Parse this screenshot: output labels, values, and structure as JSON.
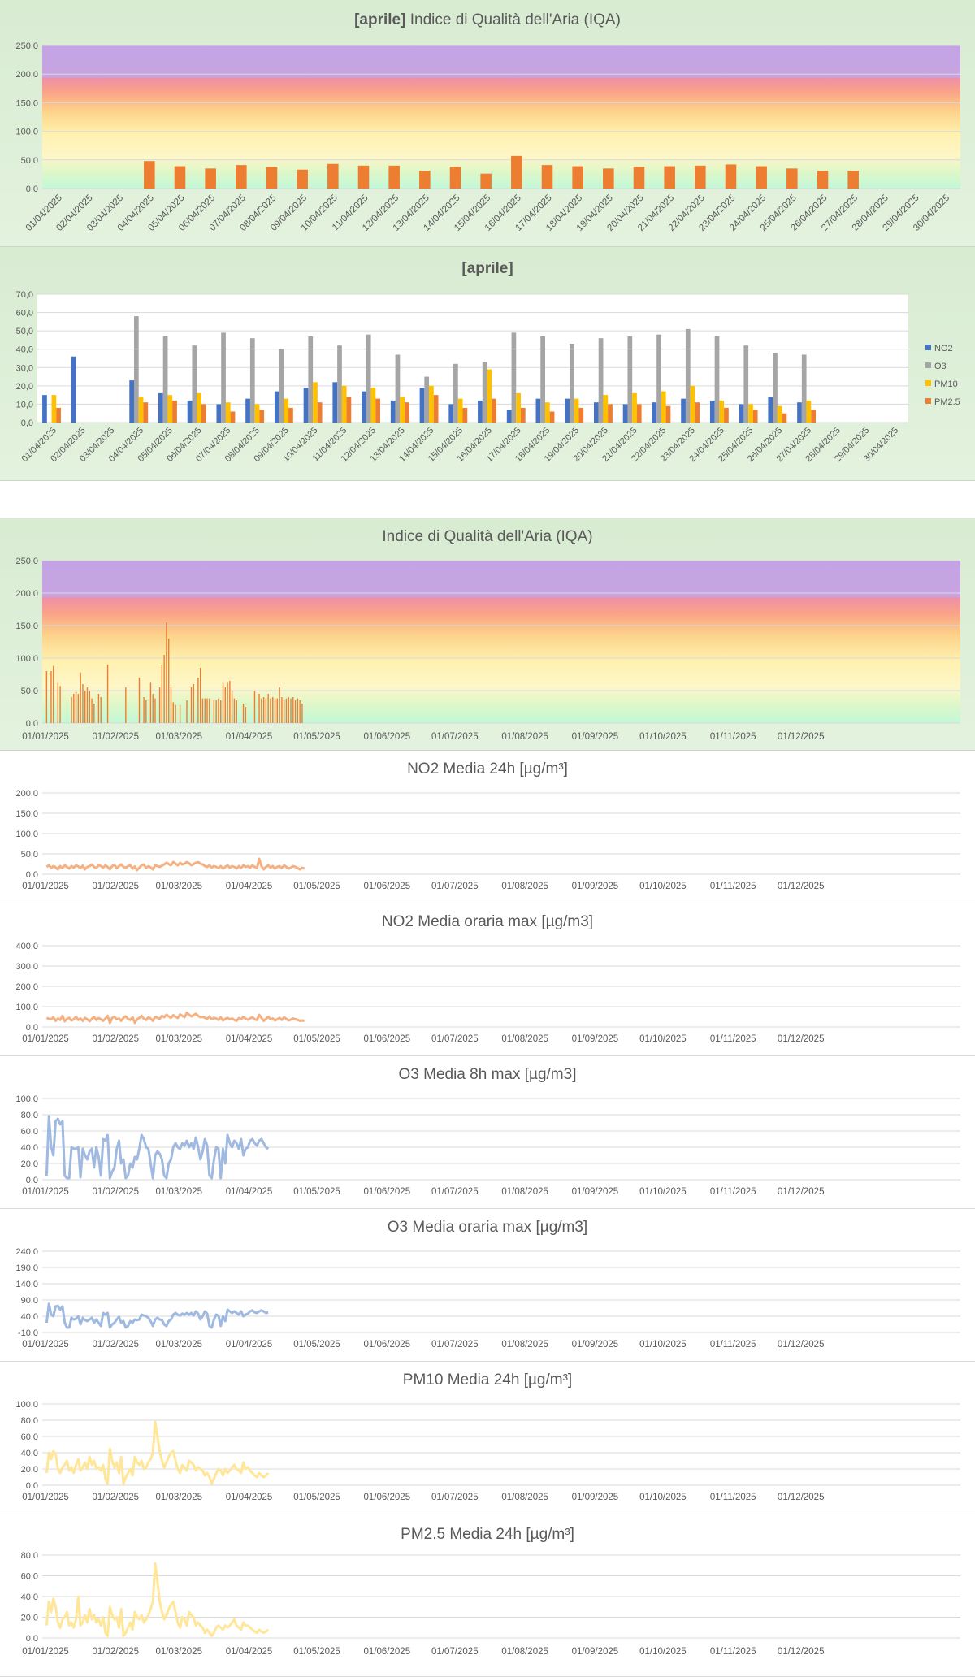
{
  "chart_data": [
    {
      "id": "c1",
      "type": "bar",
      "title_bold": "[aprile]",
      "title": "Indice di Qualità dell'Aria (IQA)",
      "ylim": [
        0,
        250
      ],
      "yticks": [
        "0,0",
        "50,0",
        "100,0",
        "150,0",
        "200,0",
        "250,0"
      ],
      "background_bands": "IQA colour scale: green, yellow, orange, red, purple",
      "categories": [
        "01/04/2025",
        "02/04/2025",
        "03/04/2025",
        "04/04/2025",
        "05/04/2025",
        "06/04/2025",
        "07/04/2025",
        "08/04/2025",
        "09/04/2025",
        "10/04/2025",
        "11/04/2025",
        "12/04/2025",
        "13/04/2025",
        "14/04/2025",
        "15/04/2025",
        "16/04/2025",
        "17/04/2025",
        "18/04/2025",
        "19/04/2025",
        "20/04/2025",
        "21/04/2025",
        "22/04/2025",
        "23/04/2025",
        "24/04/2025",
        "25/04/2025",
        "26/04/2025",
        "27/04/2025",
        "28/04/2025",
        "29/04/2025",
        "30/04/2025"
      ],
      "values": [
        null,
        null,
        null,
        48,
        39,
        35,
        41,
        38,
        33,
        43,
        40,
        40,
        31,
        38,
        26,
        57,
        41,
        39,
        35,
        38,
        39,
        40,
        42,
        39,
        35,
        31,
        31,
        null,
        null,
        null
      ],
      "color": "#ed7d31"
    },
    {
      "id": "c2",
      "type": "bar",
      "title_bold": "[aprile]",
      "title": "",
      "ylim": [
        0,
        70
      ],
      "yticks": [
        "0,0",
        "10,0",
        "20,0",
        "30,0",
        "40,0",
        "50,0",
        "60,0",
        "70,0"
      ],
      "categories": [
        "01/04/2025",
        "02/04/2025",
        "03/04/2025",
        "04/04/2025",
        "05/04/2025",
        "06/04/2025",
        "07/04/2025",
        "08/04/2025",
        "09/04/2025",
        "10/04/2025",
        "11/04/2025",
        "12/04/2025",
        "13/04/2025",
        "14/04/2025",
        "15/04/2025",
        "16/04/2025",
        "17/04/2025",
        "18/04/2025",
        "19/04/2025",
        "20/04/2025",
        "21/04/2025",
        "22/04/2025",
        "23/04/2025",
        "24/04/2025",
        "25/04/2025",
        "26/04/2025",
        "27/04/2025",
        "28/04/2025",
        "29/04/2025",
        "30/04/2025"
      ],
      "legend_position": "right",
      "series": [
        {
          "name": "NO2",
          "color": "#4472c4",
          "values": [
            15,
            36,
            null,
            23,
            16,
            12,
            10,
            13,
            17,
            19,
            22,
            17,
            12,
            19,
            10,
            12,
            7,
            13,
            13,
            11,
            10,
            11,
            13,
            12,
            10,
            14,
            11,
            null,
            null,
            null
          ]
        },
        {
          "name": "O3",
          "color": "#a5a5a5",
          "values": [
            null,
            null,
            null,
            58,
            47,
            42,
            49,
            46,
            40,
            47,
            42,
            48,
            37,
            25,
            32,
            33,
            49,
            47,
            43,
            46,
            47,
            48,
            51,
            47,
            42,
            38,
            37,
            null,
            null,
            null
          ]
        },
        {
          "name": "PM10",
          "color": "#ffc000",
          "values": [
            15,
            null,
            null,
            14,
            15,
            16,
            11,
            10,
            13,
            22,
            20,
            19,
            14,
            20,
            13,
            29,
            16,
            11,
            13,
            15,
            16,
            17,
            20,
            12,
            10,
            9,
            12,
            null,
            null,
            null
          ]
        },
        {
          "name": "PM2.5",
          "color": "#ed7d31",
          "values": [
            8,
            null,
            null,
            11,
            12,
            10,
            6,
            7,
            8,
            11,
            14,
            13,
            11,
            15,
            8,
            13,
            8,
            6,
            8,
            10,
            10,
            9,
            11,
            8,
            7,
            5,
            7,
            null,
            null,
            null
          ]
        }
      ]
    },
    {
      "id": "c3",
      "type": "bar",
      "title": "Indice di Qualità dell'Aria (IQA)",
      "ylim": [
        0,
        250
      ],
      "yticks": [
        "0,0",
        "50,0",
        "100,0",
        "150,0",
        "200,0",
        "250,0"
      ],
      "xticks": [
        "01/01/2025",
        "01/02/2025",
        "01/03/2025",
        "01/04/2025",
        "01/05/2025",
        "01/06/2025",
        "01/07/2025",
        "01/08/2025",
        "01/09/2025",
        "01/10/2025",
        "01/11/2025",
        "01/12/2025"
      ],
      "x_domain_days": 365,
      "color": "#ed7d31",
      "values": [
        80,
        null,
        80,
        88,
        null,
        62,
        57,
        null,
        null,
        null,
        null,
        40,
        45,
        48,
        45,
        78,
        60,
        50,
        55,
        50,
        38,
        30,
        null,
        45,
        40,
        null,
        null,
        90,
        null,
        null,
        null,
        null,
        null,
        null,
        null,
        55,
        null,
        null,
        null,
        null,
        null,
        70,
        null,
        40,
        35,
        null,
        62,
        45,
        38,
        null,
        55,
        90,
        105,
        155,
        130,
        55,
        32,
        28,
        null,
        28,
        null,
        null,
        35,
        null,
        55,
        60,
        null,
        70,
        85,
        38,
        38,
        38,
        38,
        null,
        35,
        35,
        38,
        35,
        62,
        55,
        62,
        65,
        50,
        38,
        35,
        null,
        null,
        30,
        25,
        null,
        null,
        null,
        50,
        null,
        45,
        38,
        40,
        38,
        45,
        38,
        40,
        38,
        38,
        55,
        40,
        35,
        38,
        40,
        38,
        40,
        35,
        38,
        35,
        30,
        null,
        null
      ]
    },
    {
      "id": "c4",
      "type": "line",
      "title": "NO2 Media 24h [µg/m³]",
      "ylim": [
        0,
        200
      ],
      "yticks": [
        "0,0",
        "50,0",
        "100,0",
        "150,0",
        "200,0"
      ],
      "xticks": [
        "01/01/2025",
        "01/02/2025",
        "01/03/2025",
        "01/04/2025",
        "01/05/2025",
        "01/06/2025",
        "01/07/2025",
        "01/08/2025",
        "01/09/2025",
        "01/10/2025",
        "01/11/2025",
        "01/12/2025"
      ],
      "x_domain_days": 365,
      "color": "#f4b183",
      "values": [
        18,
        22,
        15,
        20,
        17,
        12,
        20,
        15,
        22,
        18,
        14,
        20,
        16,
        22,
        19,
        15,
        21,
        12,
        18,
        20,
        24,
        18,
        15,
        22,
        20,
        16,
        22,
        18,
        12,
        20,
        23,
        15,
        20,
        24,
        18,
        16,
        20,
        22,
        14,
        19,
        10,
        16,
        22,
        24,
        15,
        20,
        17,
        12,
        22,
        20,
        18,
        21,
        24,
        28,
        25,
        22,
        30,
        26,
        22,
        28,
        24,
        26,
        30,
        27,
        22,
        25,
        28,
        30,
        26,
        24,
        20,
        18,
        22,
        16,
        20,
        18,
        15,
        20,
        14,
        18,
        22,
        16,
        20,
        18,
        14,
        20,
        15,
        22,
        18,
        20,
        16,
        22,
        18,
        15,
        38,
        20,
        12,
        18,
        22,
        16,
        20,
        14,
        18,
        20,
        15,
        22,
        18,
        14,
        16,
        20,
        18,
        15,
        12,
        16,
        14
      ]
    },
    {
      "id": "c5",
      "type": "line",
      "title": "NO2 Media oraria max [µg/m3]",
      "ylim": [
        0,
        400
      ],
      "yticks": [
        "0,0",
        "100,0",
        "200,0",
        "300,0",
        "400,0"
      ],
      "xticks": [
        "01/01/2025",
        "01/02/2025",
        "01/03/2025",
        "01/04/2025",
        "01/05/2025",
        "01/06/2025",
        "01/07/2025",
        "01/08/2025",
        "01/09/2025",
        "01/10/2025",
        "01/11/2025",
        "01/12/2025"
      ],
      "x_domain_days": 365,
      "color": "#f4b183",
      "values": [
        45,
        40,
        38,
        48,
        30,
        42,
        35,
        55,
        28,
        40,
        45,
        32,
        38,
        50,
        35,
        42,
        30,
        45,
        38,
        28,
        40,
        50,
        35,
        44,
        38,
        30,
        42,
        55,
        20,
        45,
        50,
        38,
        42,
        30,
        45,
        52,
        40,
        35,
        48,
        20,
        38,
        45,
        55,
        40,
        35,
        48,
        42,
        30,
        50,
        45,
        40,
        55,
        48,
        60,
        52,
        45,
        58,
        50,
        44,
        62,
        55,
        48,
        70,
        60,
        52,
        58,
        65,
        55,
        48,
        50,
        45,
        40,
        52,
        38,
        45,
        42,
        35,
        48,
        32,
        40,
        45,
        38,
        42,
        35,
        30,
        44,
        38,
        50,
        40,
        36,
        42,
        48,
        38,
        35,
        60,
        45,
        30,
        40,
        50,
        38,
        42,
        32,
        38,
        45,
        35,
        48,
        40,
        32,
        36,
        42,
        38,
        35,
        30,
        32,
        30
      ]
    },
    {
      "id": "c6",
      "type": "line",
      "title": "O3 Media 8h max [µg/m3]",
      "ylim": [
        0,
        100
      ],
      "yticks": [
        "0,0",
        "20,0",
        "40,0",
        "60,0",
        "80,0",
        "100,0"
      ],
      "xticks": [
        "01/01/2025",
        "01/02/2025",
        "01/03/2025",
        "01/04/2025",
        "01/05/2025",
        "01/06/2025",
        "01/07/2025",
        "01/08/2025",
        "01/09/2025",
        "01/10/2025",
        "01/11/2025",
        "01/12/2025"
      ],
      "x_domain_days": 365,
      "color": "#9fb9e0",
      "values": [
        5,
        78,
        40,
        30,
        72,
        75,
        68,
        72,
        5,
        2,
        2,
        40,
        38,
        38,
        40,
        3,
        38,
        30,
        25,
        35,
        38,
        15,
        40,
        28,
        5,
        50,
        48,
        55,
        2,
        10,
        15,
        38,
        48,
        20,
        25,
        2,
        5,
        20,
        15,
        28,
        25,
        38,
        55,
        50,
        40,
        38,
        20,
        2,
        30,
        35,
        32,
        25,
        5,
        2,
        20,
        25,
        40,
        45,
        40,
        38,
        45,
        42,
        48,
        40,
        45,
        38,
        52,
        40,
        25,
        35,
        50,
        42,
        5,
        2,
        25,
        40,
        38,
        2,
        38,
        20,
        55,
        45,
        40,
        48,
        45,
        38,
        50,
        30,
        38,
        40,
        48,
        50,
        45,
        42,
        48,
        50,
        45,
        40,
        38
      ]
    },
    {
      "id": "c7",
      "type": "line",
      "title": "O3 Media oraria max [µg/m3]",
      "ylim": [
        -10,
        240
      ],
      "yticks": [
        "-10,0",
        "40,0",
        "90,0",
        "140,0",
        "190,0",
        "240,0"
      ],
      "xticks": [
        "01/01/2025",
        "01/02/2025",
        "01/03/2025",
        "01/04/2025",
        "01/05/2025",
        "01/06/2025",
        "01/07/2025",
        "01/08/2025",
        "01/09/2025",
        "01/10/2025",
        "01/11/2025",
        "01/12/2025"
      ],
      "x_domain_days": 365,
      "color": "#9fb9e0",
      "values": [
        20,
        78,
        45,
        40,
        70,
        72,
        60,
        70,
        20,
        5,
        5,
        35,
        30,
        32,
        40,
        15,
        35,
        28,
        25,
        30,
        35,
        20,
        30,
        20,
        10,
        50,
        45,
        50,
        5,
        15,
        20,
        30,
        38,
        20,
        25,
        5,
        10,
        25,
        20,
        30,
        28,
        30,
        45,
        42,
        40,
        35,
        25,
        10,
        30,
        35,
        30,
        28,
        15,
        10,
        25,
        30,
        45,
        50,
        45,
        42,
        48,
        45,
        50,
        45,
        50,
        42,
        55,
        48,
        30,
        40,
        55,
        48,
        10,
        5,
        30,
        45,
        42,
        10,
        40,
        25,
        60,
        55,
        50,
        55,
        50,
        45,
        55,
        40,
        45,
        48,
        55,
        58,
        52,
        50,
        55,
        58,
        55,
        50,
        52
      ]
    },
    {
      "id": "c8",
      "type": "line",
      "title": "PM10 Media 24h [µg/m³]",
      "ylim": [
        0,
        100
      ],
      "yticks": [
        "0,0",
        "20,0",
        "40,0",
        "60,0",
        "80,0",
        "100,0"
      ],
      "xticks": [
        "01/01/2025",
        "01/02/2025",
        "01/03/2025",
        "01/04/2025",
        "01/05/2025",
        "01/06/2025",
        "01/07/2025",
        "01/08/2025",
        "01/09/2025",
        "01/10/2025",
        "01/11/2025",
        "01/12/2025"
      ],
      "x_domain_days": 365,
      "color": "#ffe699",
      "values": [
        15,
        40,
        32,
        42,
        38,
        20,
        15,
        22,
        25,
        30,
        18,
        22,
        15,
        25,
        32,
        18,
        22,
        28,
        20,
        35,
        25,
        30,
        20,
        22,
        18,
        25,
        8,
        2,
        45,
        30,
        22,
        28,
        15,
        35,
        2,
        10,
        15,
        20,
        12,
        35,
        28,
        25,
        30,
        20,
        22,
        28,
        32,
        40,
        78,
        60,
        42,
        30,
        22,
        28,
        35,
        40,
        42,
        30,
        20,
        15,
        25,
        22,
        18,
        30,
        28,
        25,
        18,
        22,
        20,
        18,
        12,
        15,
        10,
        2,
        8,
        15,
        20,
        18,
        12,
        20,
        15,
        18,
        22,
        25,
        20,
        18,
        15,
        28,
        20,
        22,
        18,
        15,
        12,
        10,
        15,
        12,
        10,
        12,
        15
      ]
    },
    {
      "id": "c9",
      "type": "line",
      "title": "PM2.5 Media 24h [µg/m³]",
      "ylim": [
        0,
        80
      ],
      "yticks": [
        "0,0",
        "20,0",
        "40,0",
        "60,0",
        "80,0"
      ],
      "xticks": [
        "01/01/2025",
        "01/02/2025",
        "01/03/2025",
        "01/04/2025",
        "01/05/2025",
        "01/06/2025",
        "01/07/2025",
        "01/08/2025",
        "01/09/2025",
        "01/10/2025",
        "01/11/2025",
        "01/12/2025"
      ],
      "x_domain_days": 365,
      "color": "#ffe699",
      "values": [
        12,
        35,
        25,
        38,
        30,
        15,
        10,
        18,
        20,
        25,
        12,
        15,
        10,
        18,
        40,
        12,
        15,
        22,
        15,
        28,
        18,
        22,
        15,
        18,
        12,
        20,
        5,
        2,
        30,
        22,
        18,
        20,
        10,
        28,
        2,
        5,
        10,
        15,
        8,
        25,
        20,
        18,
        22,
        15,
        18,
        22,
        28,
        35,
        72,
        55,
        35,
        25,
        18,
        22,
        28,
        32,
        35,
        25,
        15,
        10,
        20,
        18,
        12,
        25,
        22,
        20,
        12,
        15,
        12,
        10,
        5,
        8,
        5,
        2,
        5,
        10,
        12,
        10,
        8,
        12,
        10,
        12,
        15,
        18,
        12,
        10,
        8,
        15,
        12,
        12,
        10,
        8,
        6,
        5,
        8,
        6,
        5,
        6,
        8
      ]
    }
  ]
}
